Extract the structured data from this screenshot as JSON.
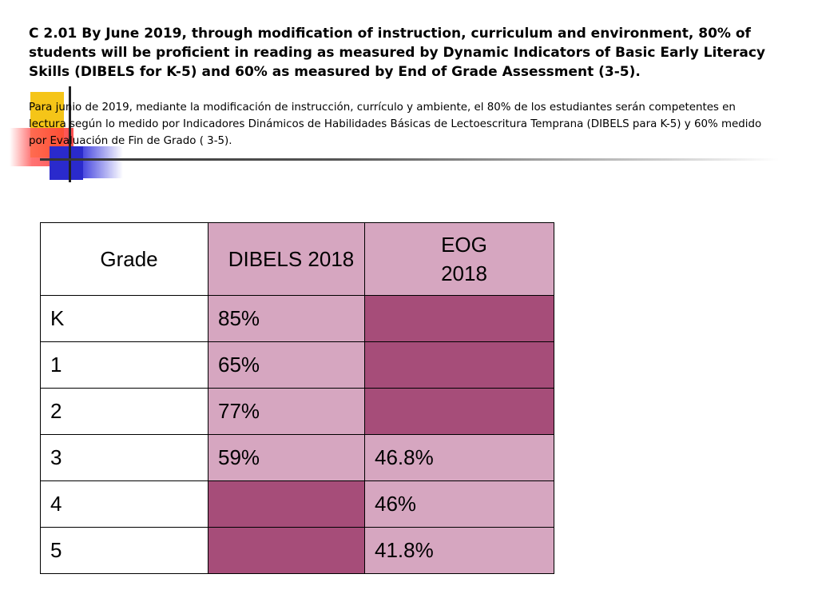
{
  "heading": {
    "english": "C 2.01 By June 2019, through modification of instruction, curriculum and environment, 80% of students will be proficient in reading as measured by Dynamic Indicators of Basic Early Literacy Skills (DIBELS for K-5) and 60% as measured by End of Grade Assessment (3-5).",
    "spanish": "Para junio de 2019, mediante la modificación de instrucción, currículo y ambiente, el 80% de los estudiantes serán competentes en lectura según lo medido por Indicadores Dinámicos de Habilidades Básicas de Lectoescritura Temprana (DIBELS para K-5) y 60% medido por Evaluación de Fin de Grado ( 3-5)."
  },
  "colors": {
    "light_cell": "#d6a6c0",
    "dark_cell": "#a64d79",
    "white_cell": "#ffffff"
  },
  "table": {
    "headers": {
      "grade": "Grade",
      "dibels": "DIBELS 2018",
      "eog_line1": "EOG",
      "eog_line2": "2018"
    },
    "rows": [
      {
        "grade": "K",
        "dibels": "85%",
        "eog": ""
      },
      {
        "grade": "1",
        "dibels": "65%",
        "eog": ""
      },
      {
        "grade": "2",
        "dibels": "77%",
        "eog": ""
      },
      {
        "grade": "3",
        "dibels": "59%",
        "eog": "46.8%"
      },
      {
        "grade": "4",
        "dibels": "",
        "eog": "46%"
      },
      {
        "grade": "5",
        "dibels": "",
        "eog": "41.8%"
      }
    ]
  }
}
